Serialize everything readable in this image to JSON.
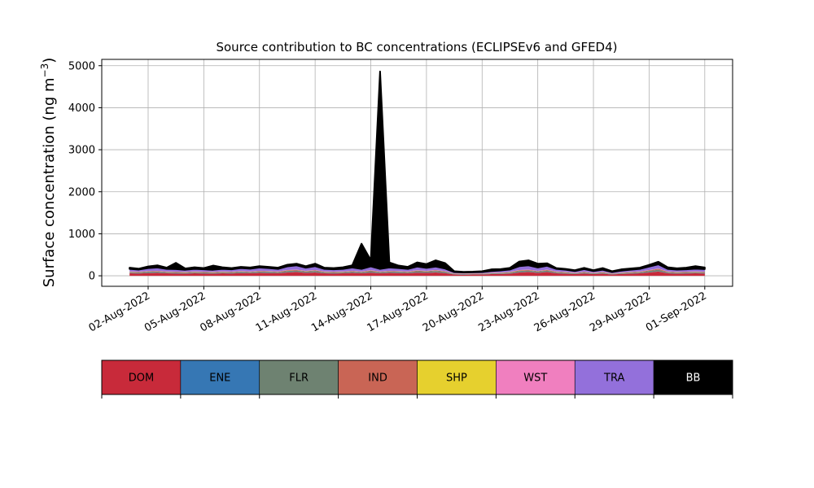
{
  "chart_data": {
    "type": "area",
    "stacked": true,
    "title": "Source contribution to BC concentrations (ECLIPSEv6 and GFED4)",
    "ylabel": "Surface concentration (ng m",
    "ylabel_superscript": "−3",
    "ylabel_close": ")",
    "ylim": [
      -250,
      5150
    ],
    "yticks": [
      0,
      1000,
      2000,
      3000,
      4000,
      5000
    ],
    "xlim": [
      "2022-07-30T12:00",
      "2022-09-02T12:00"
    ],
    "xticks": [
      "02-Aug-2022",
      "05-Aug-2022",
      "08-Aug-2022",
      "11-Aug-2022",
      "14-Aug-2022",
      "17-Aug-2022",
      "20-Aug-2022",
      "23-Aug-2022",
      "26-Aug-2022",
      "29-Aug-2022",
      "01-Sep-2022"
    ],
    "xtick_dates": [
      "2022-08-02",
      "2022-08-05",
      "2022-08-08",
      "2022-08-11",
      "2022-08-14",
      "2022-08-17",
      "2022-08-20",
      "2022-08-23",
      "2022-08-26",
      "2022-08-29",
      "2022-09-01"
    ],
    "grid": true,
    "legend_position": "below",
    "x": [
      "2022-08-01",
      "2022-08-01 12:00",
      "2022-08-02",
      "2022-08-02 12:00",
      "2022-08-03",
      "2022-08-03 12:00",
      "2022-08-04",
      "2022-08-04 12:00",
      "2022-08-05",
      "2022-08-05 12:00",
      "2022-08-06",
      "2022-08-06 12:00",
      "2022-08-07",
      "2022-08-07 12:00",
      "2022-08-08",
      "2022-08-08 12:00",
      "2022-08-09",
      "2022-08-09 12:00",
      "2022-08-10",
      "2022-08-10 12:00",
      "2022-08-11",
      "2022-08-11 12:00",
      "2022-08-12",
      "2022-08-12 12:00",
      "2022-08-13",
      "2022-08-13 12:00",
      "2022-08-14",
      "2022-08-14 12:00",
      "2022-08-15",
      "2022-08-15 12:00",
      "2022-08-16",
      "2022-08-16 12:00",
      "2022-08-17",
      "2022-08-17 12:00",
      "2022-08-18",
      "2022-08-18 12:00",
      "2022-08-19",
      "2022-08-19 12:00",
      "2022-08-20",
      "2022-08-20 12:00",
      "2022-08-21",
      "2022-08-21 12:00",
      "2022-08-22",
      "2022-08-22 12:00",
      "2022-08-23",
      "2022-08-23 12:00",
      "2022-08-24",
      "2022-08-24 12:00",
      "2022-08-25",
      "2022-08-25 12:00",
      "2022-08-26",
      "2022-08-26 12:00",
      "2022-08-27",
      "2022-08-27 12:00",
      "2022-08-28",
      "2022-08-28 12:00",
      "2022-08-29",
      "2022-08-29 12:00",
      "2022-08-30",
      "2022-08-30 12:00",
      "2022-08-31",
      "2022-08-31 12:00",
      "2022-09-01"
    ],
    "series": [
      {
        "name": "DOM",
        "color": "#c82a3a",
        "values": [
          60,
          55,
          65,
          70,
          60,
          55,
          50,
          60,
          55,
          50,
          60,
          55,
          65,
          60,
          70,
          65,
          60,
          80,
          90,
          70,
          80,
          60,
          55,
          60,
          70,
          60,
          75,
          60,
          70,
          65,
          60,
          75,
          70,
          80,
          65,
          30,
          25,
          30,
          30,
          40,
          45,
          50,
          80,
          90,
          70,
          90,
          60,
          50,
          40,
          55,
          40,
          50,
          30,
          45,
          50,
          60,
          80,
          100,
          60,
          50,
          55,
          60,
          55
        ]
      },
      {
        "name": "ENE",
        "color": "#3677b4",
        "values": [
          5,
          5,
          5,
          5,
          5,
          5,
          5,
          5,
          5,
          5,
          5,
          5,
          5,
          5,
          5,
          5,
          5,
          5,
          5,
          5,
          5,
          5,
          5,
          5,
          5,
          5,
          5,
          5,
          5,
          5,
          5,
          5,
          5,
          5,
          5,
          5,
          5,
          5,
          5,
          5,
          5,
          5,
          5,
          5,
          5,
          5,
          5,
          5,
          5,
          5,
          5,
          5,
          5,
          5,
          5,
          5,
          5,
          5,
          5,
          5,
          5,
          5,
          5
        ]
      },
      {
        "name": "FLR",
        "color": "#6e8271",
        "values": [
          20,
          20,
          25,
          25,
          20,
          20,
          20,
          20,
          20,
          20,
          20,
          20,
          25,
          20,
          25,
          25,
          20,
          30,
          30,
          25,
          30,
          20,
          20,
          20,
          25,
          20,
          30,
          20,
          25,
          25,
          20,
          30,
          25,
          30,
          25,
          10,
          10,
          10,
          10,
          15,
          15,
          20,
          30,
          30,
          25,
          30,
          20,
          20,
          15,
          20,
          15,
          20,
          10,
          15,
          20,
          20,
          30,
          40,
          20,
          20,
          20,
          20,
          20
        ]
      },
      {
        "name": "IND",
        "color": "#c96555",
        "values": [
          10,
          10,
          10,
          10,
          10,
          10,
          10,
          10,
          10,
          10,
          10,
          10,
          10,
          10,
          10,
          10,
          10,
          15,
          15,
          10,
          15,
          10,
          10,
          10,
          10,
          10,
          15,
          10,
          10,
          10,
          10,
          15,
          10,
          15,
          10,
          5,
          5,
          5,
          5,
          5,
          5,
          10,
          15,
          15,
          10,
          15,
          10,
          10,
          5,
          10,
          5,
          10,
          5,
          5,
          10,
          10,
          15,
          20,
          10,
          10,
          10,
          10,
          10
        ]
      },
      {
        "name": "SHP",
        "color": "#e6d02e",
        "values": [
          3,
          3,
          3,
          3,
          3,
          3,
          3,
          3,
          3,
          3,
          3,
          3,
          3,
          3,
          3,
          3,
          3,
          3,
          3,
          3,
          3,
          3,
          3,
          3,
          3,
          3,
          3,
          3,
          3,
          3,
          3,
          3,
          3,
          3,
          3,
          3,
          3,
          3,
          3,
          3,
          3,
          3,
          3,
          3,
          3,
          3,
          3,
          3,
          3,
          3,
          3,
          3,
          3,
          3,
          3,
          3,
          3,
          3,
          3,
          3,
          3,
          3,
          3
        ]
      },
      {
        "name": "WST",
        "color": "#f07fbf",
        "values": [
          5,
          5,
          5,
          5,
          5,
          5,
          5,
          5,
          5,
          5,
          5,
          5,
          5,
          5,
          5,
          5,
          5,
          5,
          5,
          5,
          5,
          5,
          5,
          5,
          5,
          5,
          5,
          5,
          5,
          5,
          5,
          5,
          5,
          5,
          5,
          5,
          5,
          5,
          5,
          5,
          5,
          5,
          5,
          5,
          5,
          5,
          5,
          5,
          5,
          5,
          5,
          5,
          5,
          5,
          5,
          5,
          5,
          5,
          5,
          5,
          5,
          5,
          5
        ]
      },
      {
        "name": "TRA",
        "color": "#9370db",
        "values": [
          60,
          50,
          70,
          80,
          60,
          60,
          50,
          60,
          55,
          50,
          60,
          55,
          70,
          65,
          80,
          70,
          60,
          85,
          100,
          75,
          90,
          60,
          55,
          60,
          80,
          60,
          90,
          60,
          80,
          70,
          60,
          85,
          70,
          80,
          60,
          30,
          25,
          25,
          30,
          40,
          50,
          55,
          90,
          100,
          80,
          90,
          60,
          50,
          40,
          60,
          40,
          50,
          30,
          45,
          50,
          60,
          80,
          100,
          60,
          55,
          55,
          65,
          60
        ]
      },
      {
        "name": "BB",
        "color": "#000000",
        "values": [
          30,
          20,
          40,
          50,
          30,
          150,
          30,
          40,
          30,
          100,
          40,
          30,
          30,
          30,
          30,
          30,
          30,
          40,
          40,
          35,
          60,
          30,
          30,
          40,
          50,
          600,
          150,
          4700,
          120,
          60,
          50,
          100,
          90,
          150,
          130,
          20,
          15,
          15,
          20,
          40,
          30,
          40,
          110,
          120,
          90,
          60,
          20,
          20,
          20,
          30,
          20,
          40,
          20,
          30,
          30,
          30,
          40,
          60,
          40,
          30,
          40,
          60,
          40
        ]
      }
    ]
  }
}
